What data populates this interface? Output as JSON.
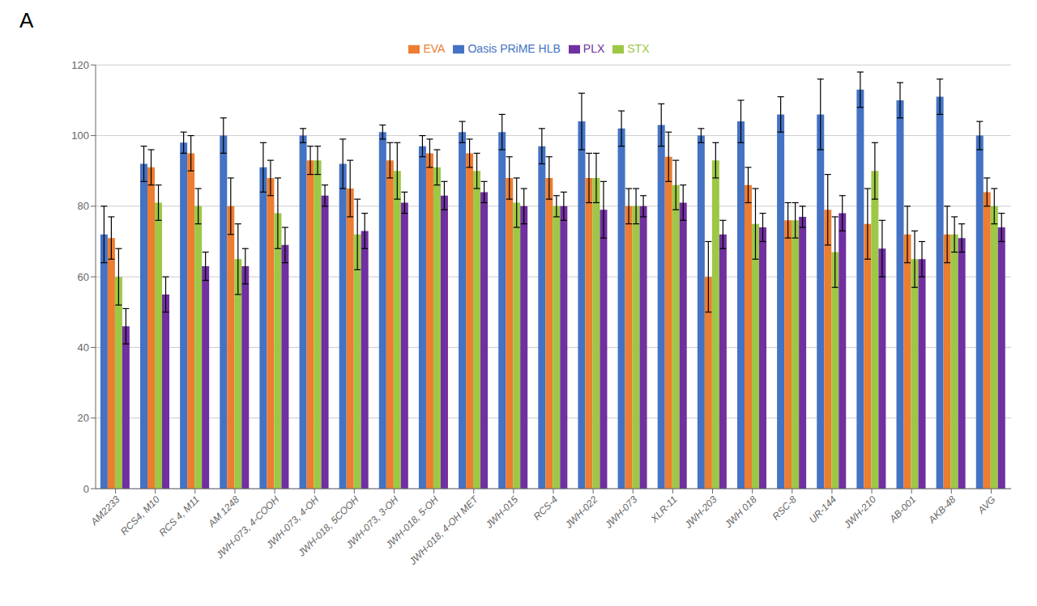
{
  "chart_data": {
    "type": "bar",
    "title": "A",
    "categories": [
      "AM2233",
      "RCS4, M10",
      "RCS 4, M11",
      "AM 1248",
      "JWH-073, 4-COOH",
      "JWH-073, 4-OH",
      "JWH-018, 5COOH",
      "JWH-073, 3-OH",
      "JWH-018, 5-OH",
      "JWH-018, 4-OH MET",
      "JWH-015",
      "RCS-4",
      "JWH-022",
      "JWH-073",
      "XLR-11",
      "JWH-203",
      "JWH 018",
      "RSC-8",
      "UR-144",
      "JWH-210",
      "AB-001",
      "AKB-48",
      "AVG"
    ],
    "series": [
      {
        "name": "Oasis PRiME HLB",
        "color": "#4472C4",
        "values": [
          72,
          92,
          98,
          100,
          91,
          100,
          92,
          101,
          97,
          101,
          101,
          97,
          104,
          102,
          103,
          100,
          104,
          106,
          106,
          113,
          110,
          111,
          100
        ],
        "errors": [
          8,
          5,
          3,
          5,
          7,
          2,
          7,
          2,
          3,
          3,
          5,
          5,
          8,
          5,
          6,
          2,
          6,
          5,
          10,
          5,
          5,
          5,
          4
        ]
      },
      {
        "name": "EVA",
        "color": "#ED7D31",
        "values": [
          71,
          91,
          95,
          80,
          88,
          93,
          85,
          93,
          95,
          95,
          88,
          88,
          88,
          80,
          94,
          60,
          86,
          76,
          79,
          75,
          72,
          72,
          84
        ],
        "errors": [
          6,
          5,
          5,
          8,
          5,
          4,
          8,
          5,
          4,
          4,
          6,
          6,
          7,
          5,
          7,
          10,
          5,
          5,
          10,
          10,
          8,
          8,
          4
        ]
      },
      {
        "name": "STX",
        "color": "#9DC846",
        "values": [
          60,
          81,
          80,
          65,
          78,
          93,
          72,
          90,
          91,
          90,
          81,
          80,
          88,
          80,
          86,
          93,
          75,
          76,
          67,
          90,
          65,
          72,
          80
        ],
        "errors": [
          8,
          5,
          5,
          10,
          10,
          4,
          10,
          8,
          5,
          5,
          7,
          3,
          7,
          5,
          7,
          5,
          10,
          5,
          10,
          8,
          8,
          5,
          5
        ]
      },
      {
        "name": "PLX",
        "color": "#7030A0",
        "values": [
          46,
          55,
          63,
          63,
          69,
          83,
          73,
          81,
          83,
          84,
          80,
          80,
          79,
          80,
          81,
          72,
          74,
          77,
          78,
          68,
          65,
          71,
          74
        ],
        "errors": [
          5,
          5,
          4,
          5,
          5,
          3,
          5,
          3,
          4,
          3,
          5,
          4,
          8,
          3,
          5,
          4,
          4,
          3,
          5,
          8,
          5,
          4,
          4
        ]
      }
    ],
    "ylim": [
      0,
      120
    ],
    "yticks": [
      0,
      20,
      40,
      60,
      80,
      100,
      120
    ],
    "grid": true,
    "legend": "top"
  }
}
